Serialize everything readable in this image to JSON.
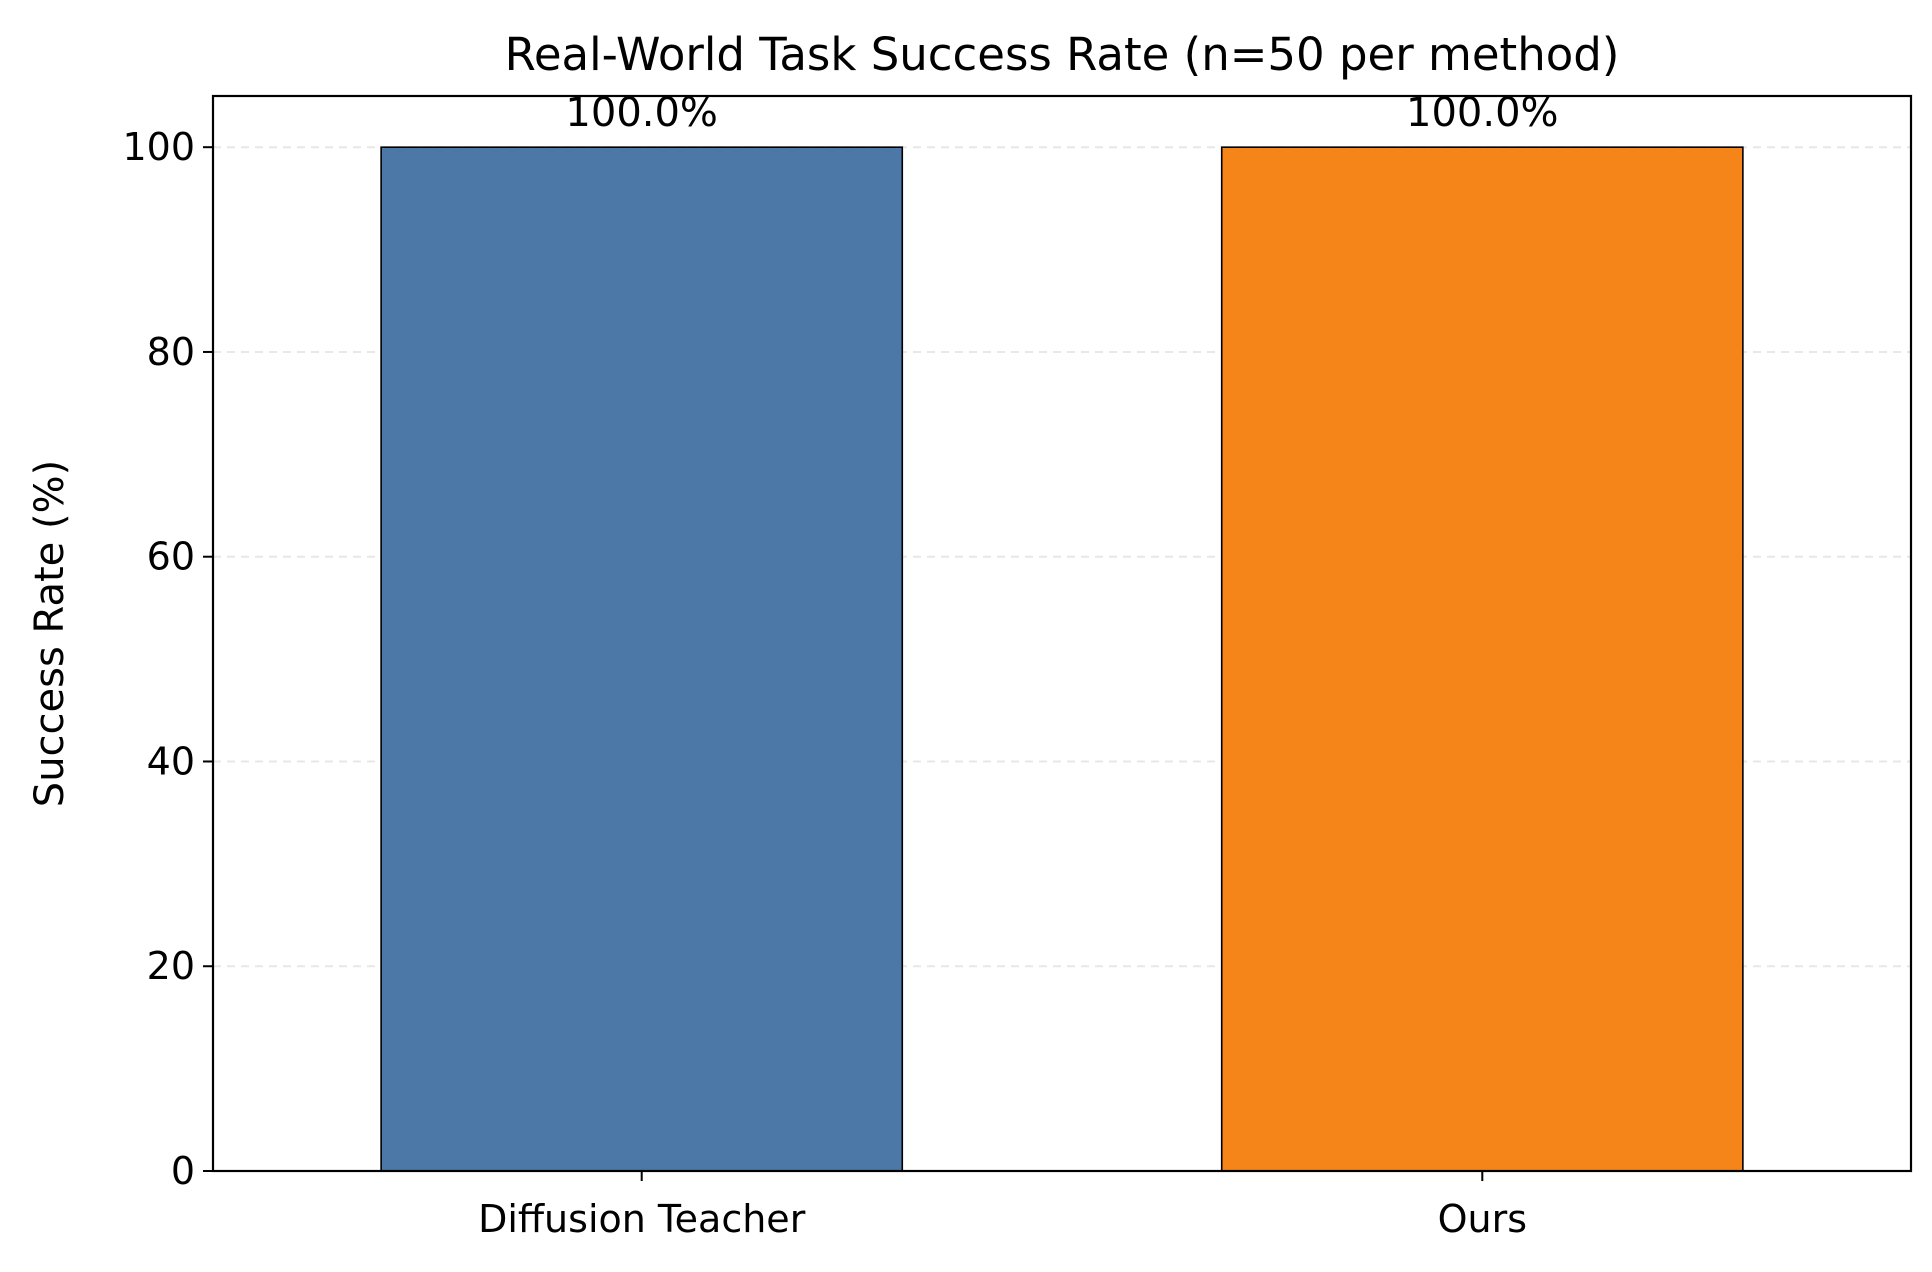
{
  "chart_data": {
    "type": "bar",
    "title": "Real-World Task Success Rate (n=50 per method)",
    "xlabel": "",
    "ylabel": "Success Rate (%)",
    "categories": [
      "Diffusion Teacher",
      "Ours"
    ],
    "values": [
      100.0,
      100.0
    ],
    "data_labels": [
      "100.0%",
      "100.0%"
    ],
    "colors": [
      "#4c78a8",
      "#f58518"
    ],
    "ylim": [
      0,
      105
    ],
    "yticks": [
      0,
      20,
      40,
      60,
      80,
      100
    ],
    "ytick_labels": [
      "0",
      "20",
      "40",
      "60",
      "80",
      "100"
    ],
    "grid": "y-dashed",
    "legend": "none"
  }
}
